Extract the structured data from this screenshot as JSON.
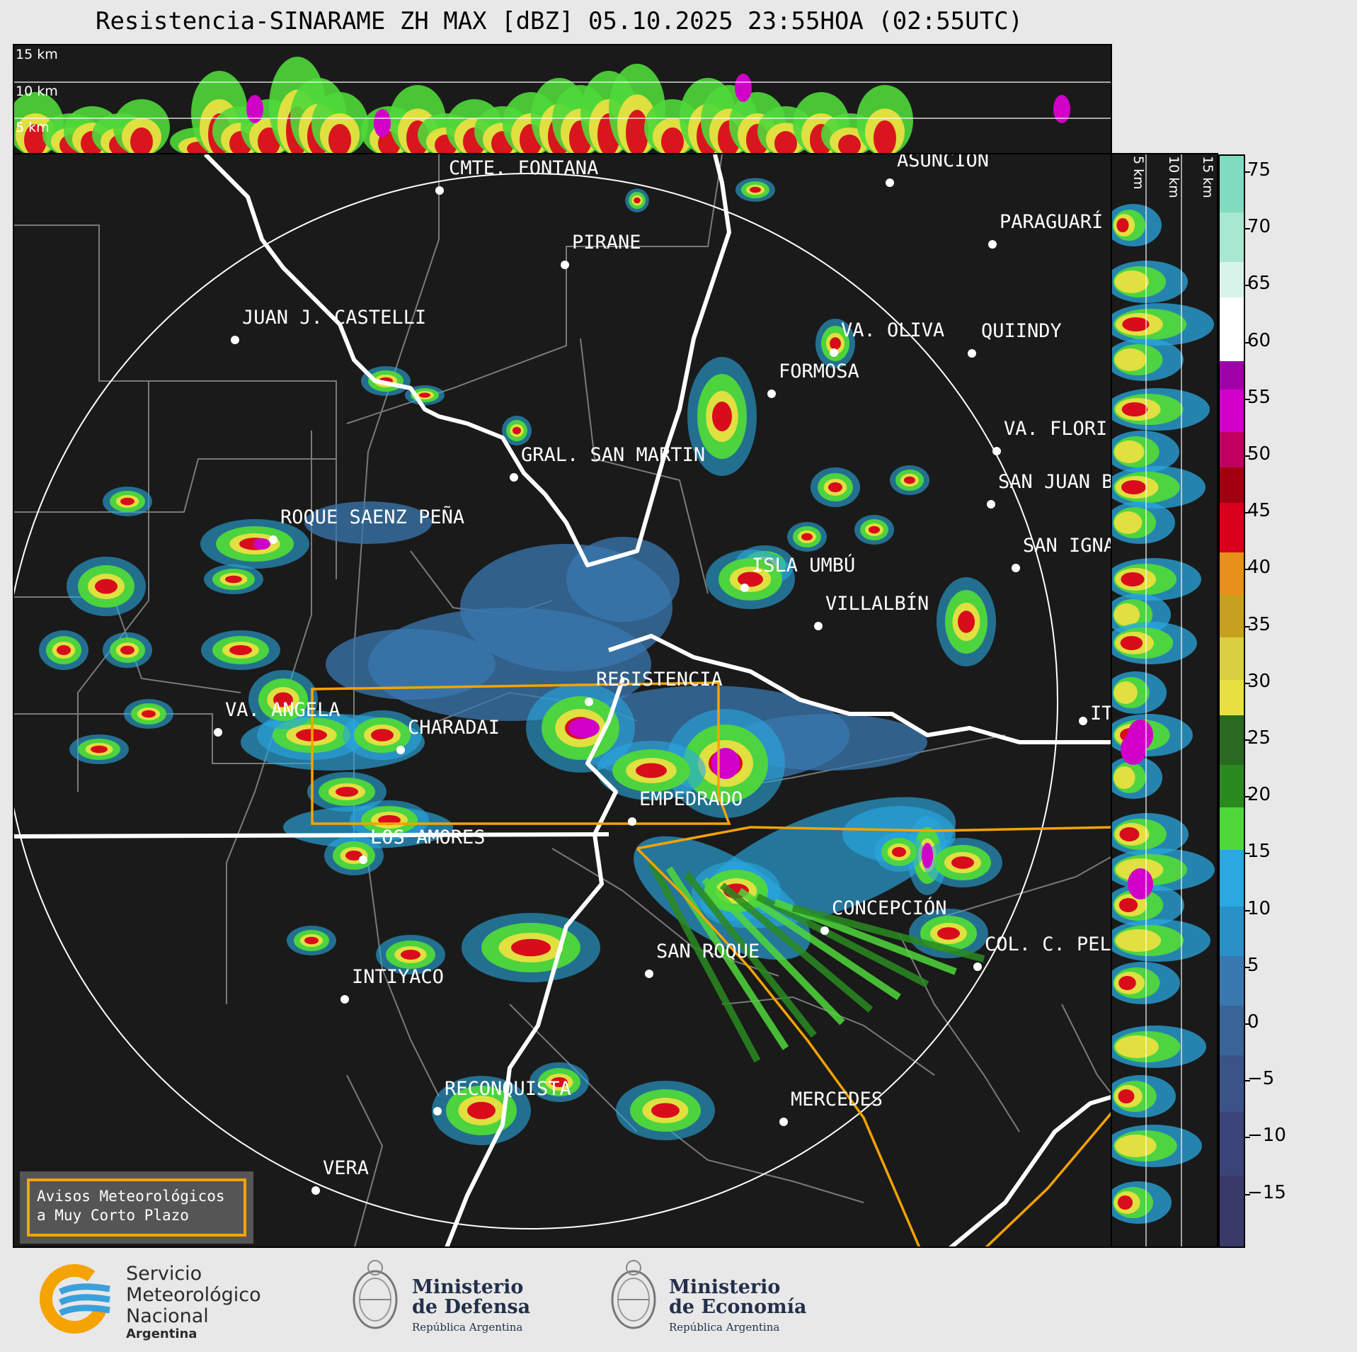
{
  "title": "Resistencia-SINARAME ZH MAX [dBZ] 05.10.2025 23:55HOA (02:55UTC)",
  "top_panel": {
    "altitudes": [
      "15 km",
      "10 km",
      "5 km"
    ]
  },
  "side_panel": {
    "altitudes": [
      "5 km",
      "10 km",
      "15 km"
    ]
  },
  "colorbar": {
    "unit": "dBZ",
    "ticks": [
      "75",
      "70",
      "65",
      "60",
      "55",
      "50",
      "45",
      "40",
      "35",
      "30",
      "25",
      "20",
      "15",
      "10",
      "5",
      "0",
      "−5",
      "−10",
      "−15"
    ],
    "colors": {
      "high": "#7fdcc0",
      "white": "#ffffff",
      "magenta": "#d000c8",
      "red": "#d8001a",
      "orange": "#e8901a",
      "yellow": "#e8e040",
      "green": "#2a8a20",
      "lightgreen": "#4fd83a",
      "cyan": "#2aa8e0",
      "blue": "#3a78b0",
      "navy": "#3a3a6a"
    }
  },
  "cities": [
    {
      "name": "CMTE. FONTANA"
    },
    {
      "name": "ASUNCIÓN"
    },
    {
      "name": "PARAGUARÍ"
    },
    {
      "name": "PIRANE"
    },
    {
      "name": "JUAN J. CASTELLI"
    },
    {
      "name": "VA. OLIVA"
    },
    {
      "name": "QUIINDY"
    },
    {
      "name": "FORMOSA"
    },
    {
      "name": "VA. FLORI"
    },
    {
      "name": "GRAL. SAN MARTIN"
    },
    {
      "name": "SAN JUAN B"
    },
    {
      "name": "ROQUE SAENZ PEÑA"
    },
    {
      "name": "SAN IGNA"
    },
    {
      "name": "ISLA UMBÚ"
    },
    {
      "name": "VILLALBÍN"
    },
    {
      "name": "RESISTENCIA"
    },
    {
      "name": "VA. ANGELA"
    },
    {
      "name": "CHARADAI"
    },
    {
      "name": "IT"
    },
    {
      "name": "EMPEDRADO"
    },
    {
      "name": "LOS AMORES"
    },
    {
      "name": "CONCEPCIÓN"
    },
    {
      "name": "SAN ROQUE"
    },
    {
      "name": "COL. C. PEL"
    },
    {
      "name": "INTIYACO"
    },
    {
      "name": "RECONQUISTA"
    },
    {
      "name": "MERCEDES"
    },
    {
      "name": "VERA"
    }
  ],
  "warning_box": {
    "line1": "Avisos Meteorológicos",
    "line2": "a Muy Corto Plazo"
  },
  "logos": {
    "smn": {
      "line1": "Servicio",
      "line2": "Meteorológico",
      "line3": "Nacional",
      "line4": "Argentina"
    },
    "defensa": {
      "line1": "Ministerio",
      "line2": "de Defensa",
      "line3": "República Argentina"
    },
    "economia": {
      "line1": "Ministerio",
      "line2": "de Economía",
      "line3": "República Argentina"
    }
  }
}
